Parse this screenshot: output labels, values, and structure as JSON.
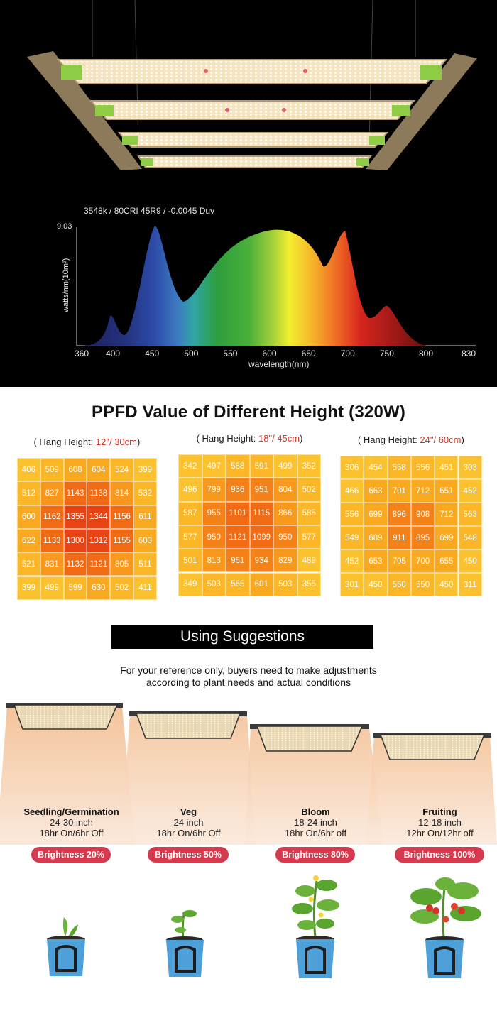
{
  "spectrum": {
    "spec_caption": "3548k / 80CRI 45R9 / -0.0045 Duv",
    "y_max_label": "9.03",
    "y_axis_label": "watts/nm(10m²)",
    "x_axis_label": "wavelength(nm)",
    "x_ticks": [
      "360",
      "400",
      "450",
      "500",
      "550",
      "600",
      "650",
      "700",
      "750",
      "800",
      "830"
    ]
  },
  "ppfd": {
    "title": "PPFD Value of Different Height  (320W)",
    "grids": [
      {
        "label_prefix": "( Hang Height: ",
        "label_value": "12\"/ 30cm",
        "label_suffix": ")",
        "values": [
          [
            406,
            509,
            608,
            604,
            524,
            399
          ],
          [
            512,
            827,
            1143,
            1138,
            814,
            532
          ],
          [
            600,
            1162,
            1355,
            1344,
            1156,
            611
          ],
          [
            622,
            1133,
            1300,
            1312,
            1155,
            603
          ],
          [
            521,
            831,
            1132,
            1121,
            805,
            511
          ],
          [
            399,
            499,
            599,
            630,
            502,
            411
          ]
        ]
      },
      {
        "label_prefix": "( Hang Height: ",
        "label_value": "18\"/ 45cm",
        "label_suffix": ")",
        "values": [
          [
            342,
            497,
            588,
            591,
            499,
            352
          ],
          [
            496,
            799,
            936,
            951,
            804,
            502
          ],
          [
            587,
            955,
            1101,
            1115,
            866,
            585
          ],
          [
            577,
            950,
            1121,
            1099,
            950,
            577
          ],
          [
            501,
            813,
            961,
            934,
            829,
            489
          ],
          [
            349,
            503,
            565,
            601,
            503,
            355
          ]
        ]
      },
      {
        "label_prefix": "( Hang Height: ",
        "label_value": "24\"/ 60cm",
        "label_suffix": ")",
        "values": [
          [
            306,
            454,
            558,
            556,
            451,
            303
          ],
          [
            466,
            663,
            701,
            712,
            651,
            452
          ],
          [
            556,
            699,
            896,
            908,
            712,
            563
          ],
          [
            549,
            689,
            911,
            895,
            699,
            548
          ],
          [
            452,
            653,
            705,
            700,
            655,
            450
          ],
          [
            301,
            450,
            550,
            550,
            450,
            311
          ]
        ]
      }
    ]
  },
  "suggestions": {
    "banner": "Using Suggestions",
    "note_line1": "For your reference only, buyers need to make adjustments",
    "note_line2": "according to plant needs and actual conditions",
    "stages": [
      {
        "name": "Seedling/Germination",
        "height": "24-30 inch",
        "schedule": "18hr On/6hr Off",
        "brightness": "Brightness 20%"
      },
      {
        "name": "Veg",
        "height": "24 inch",
        "schedule": "18hr On/6hr Off",
        "brightness": "Brightness 50%"
      },
      {
        "name": "Bloom",
        "height": "18-24 inch",
        "schedule": "18hr On/6hr off",
        "brightness": "Brightness 80%"
      },
      {
        "name": "Fruiting",
        "height": "12-18 inch",
        "schedule": "12hr On/12hr off",
        "brightness": "Brightness 100%"
      }
    ]
  },
  "colors": {
    "hero_bg": "#000000",
    "badge": "#d63a4e",
    "accent_red": "#d0331f"
  }
}
